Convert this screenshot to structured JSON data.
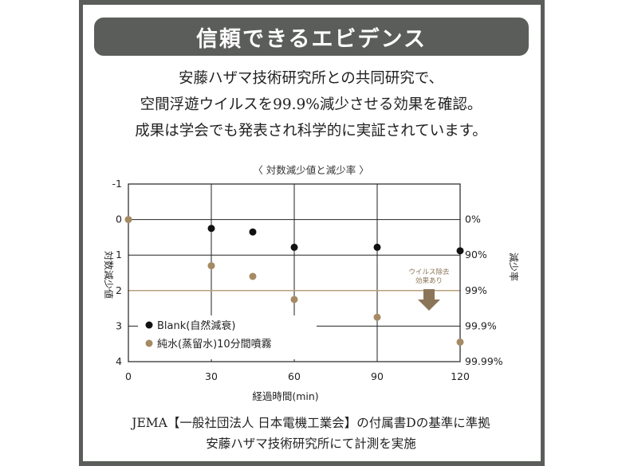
{
  "title": "信頼できるエビデンス",
  "intro_lines": [
    "安藤ハザマ技術研究所との共同研究で、",
    "空間浮遊ウイルスを99.9%減少させる効果を確認。",
    "成果は学会でも発表され科学的に実証されています。"
  ],
  "chart_caption": "〈 対数減少値と減少率 〉",
  "annotation": {
    "line1": "ウイルス除去",
    "line2": "効果あり"
  },
  "footer_lines": [
    "JEMA【一般社団法人 日本電機工業会】の付属書Dの基準に準拠",
    "安藤ハザマ技術研究所にて計測を実施"
  ],
  "colors": {
    "frame": "#5b5d5b",
    "blank": "#111111",
    "water": "#a58a64",
    "threshold": "#b8a07c",
    "arrow": "#8b7558"
  },
  "chart_data": {
    "type": "scatter",
    "xlabel": "経過時間(min)",
    "ylabel": "対数減少値",
    "y2label": "減少率",
    "xlim": [
      0,
      120
    ],
    "ylim": [
      -1,
      4
    ],
    "y_inverted": true,
    "x_ticks": [
      "0",
      "30",
      "60",
      "90",
      "120"
    ],
    "x_tick_values": [
      0,
      30,
      60,
      90,
      120
    ],
    "y_ticks": [
      "-1",
      "0",
      "1",
      "2",
      "3",
      "4"
    ],
    "y_tick_values": [
      -1,
      0,
      1,
      2,
      3,
      4
    ],
    "y2_ticks": [
      "0%",
      "90%",
      "99%",
      "99.9%",
      "99.99%"
    ],
    "y2_tick_values": [
      0,
      1,
      2,
      3,
      4
    ],
    "threshold": 2,
    "grid": true,
    "legend_position": "bottom-left",
    "series": [
      {
        "name": "Blank(自然減衰)",
        "x": [
          30,
          45,
          60,
          90,
          120
        ],
        "y": [
          0.25,
          0.35,
          0.78,
          0.78,
          0.88
        ]
      },
      {
        "name": "純水(蒸留水)10分間噴霧",
        "x": [
          0,
          30,
          45,
          60,
          90,
          120
        ],
        "y": [
          0,
          1.3,
          1.6,
          2.25,
          2.75,
          3.45
        ]
      }
    ]
  }
}
